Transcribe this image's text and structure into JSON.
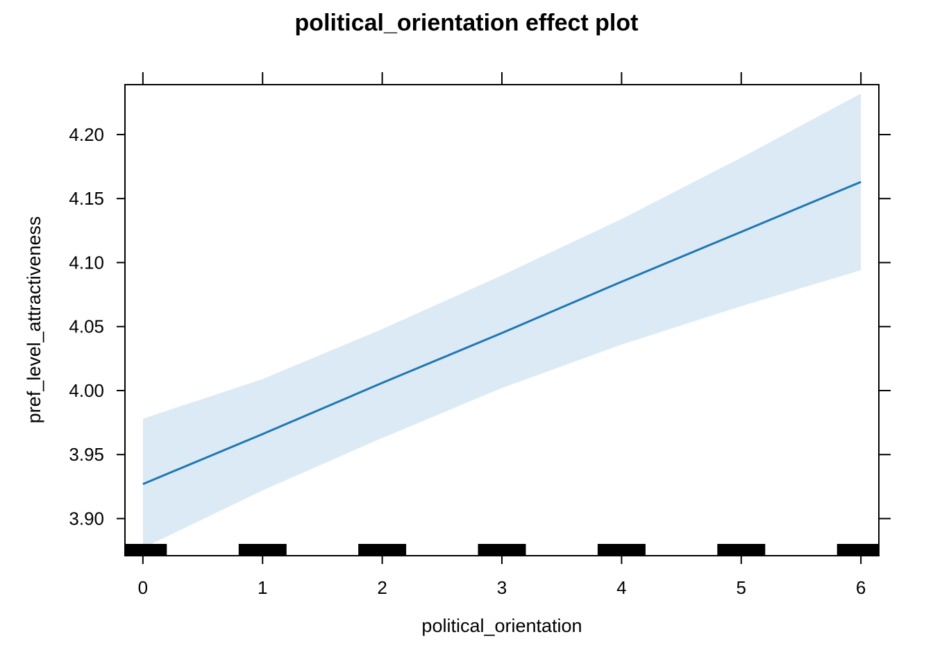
{
  "chart_data": {
    "type": "line",
    "title": "political_orientation effect plot",
    "xlabel": "political_orientation",
    "ylabel": "pref_level_attractiveness",
    "xlim": [
      -0.15,
      6.15
    ],
    "ylim": [
      3.871,
      4.239
    ],
    "x_ticks": [
      0,
      1,
      2,
      3,
      4,
      5,
      6
    ],
    "x_tick_labels": [
      "0",
      "1",
      "2",
      "3",
      "4",
      "5",
      "6"
    ],
    "y_ticks": [
      3.9,
      3.95,
      4.0,
      4.05,
      4.1,
      4.15,
      4.2
    ],
    "y_tick_labels": [
      "3.90",
      "3.95",
      "4.00",
      "4.05",
      "4.10",
      "4.15",
      "4.20"
    ],
    "grid": false,
    "series": [
      {
        "x": [
          0,
          1,
          2,
          3,
          4,
          5,
          6
        ],
        "fit": [
          3.927,
          3.966,
          4.006,
          4.045,
          4.085,
          4.124,
          4.163
        ],
        "lower": [
          3.877,
          3.922,
          3.963,
          4.002,
          4.036,
          4.066,
          4.094
        ],
        "upper": [
          3.978,
          4.009,
          4.048,
          4.09,
          4.134,
          4.182,
          4.232
        ],
        "color": "#1f77b4",
        "band_color": "#dbeaf5"
      }
    ],
    "rug": {
      "x": [
        0,
        1,
        2,
        3,
        4,
        5,
        6
      ],
      "color": "#000000"
    }
  }
}
